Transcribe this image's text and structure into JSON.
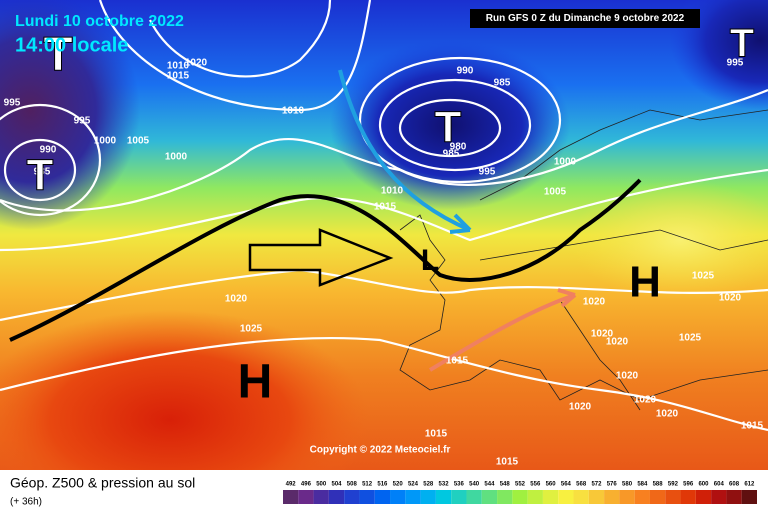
{
  "header": {
    "date": "Lundi 10 octobre 2022",
    "time": "14:00 locale",
    "run": "Run GFS 0 Z du Dimanche 9 octobre 2022"
  },
  "copyright": "Copyright © 2022 Meteociel.fr",
  "legend": {
    "title": "Géop. Z500 & pression au sol",
    "subtitle": "(+ 36h)",
    "scale": [
      492,
      496,
      500,
      504,
      508,
      512,
      516,
      520,
      524,
      528,
      532,
      536,
      540,
      544,
      548,
      552,
      556,
      560,
      564,
      568,
      572,
      576,
      580,
      584,
      588,
      592,
      596,
      600,
      604,
      608,
      612
    ],
    "colors": [
      "#5a2a6a",
      "#6a2a8a",
      "#4a2ca0",
      "#3030b8",
      "#2040d0",
      "#1050e0",
      "#0064f0",
      "#0080f8",
      "#0098f8",
      "#00b0f0",
      "#00c8e0",
      "#20d0c0",
      "#40d8a0",
      "#60e080",
      "#80e860",
      "#a0f040",
      "#c0f040",
      "#e0f040",
      "#f8f040",
      "#f8e040",
      "#f8c838",
      "#f8b030",
      "#f89828",
      "#f88020",
      "#f06818",
      "#e85010",
      "#e03808",
      "#d02008",
      "#b01010",
      "#901010",
      "#601010"
    ]
  },
  "symbols": [
    "T",
    "T",
    "T",
    "T",
    "H",
    "H",
    "L"
  ],
  "isobar_labels": [
    995,
    995,
    1000,
    1005,
    1000,
    990,
    985,
    1010,
    1015,
    1020,
    1010,
    990,
    985,
    980,
    985,
    995,
    1000,
    1005,
    1010,
    1015,
    1020,
    1025,
    1015,
    1020,
    1020,
    1020,
    1025,
    1020,
    1025,
    1020,
    1020,
    1020,
    1020,
    1015,
    1015,
    1015,
    995
  ]
}
